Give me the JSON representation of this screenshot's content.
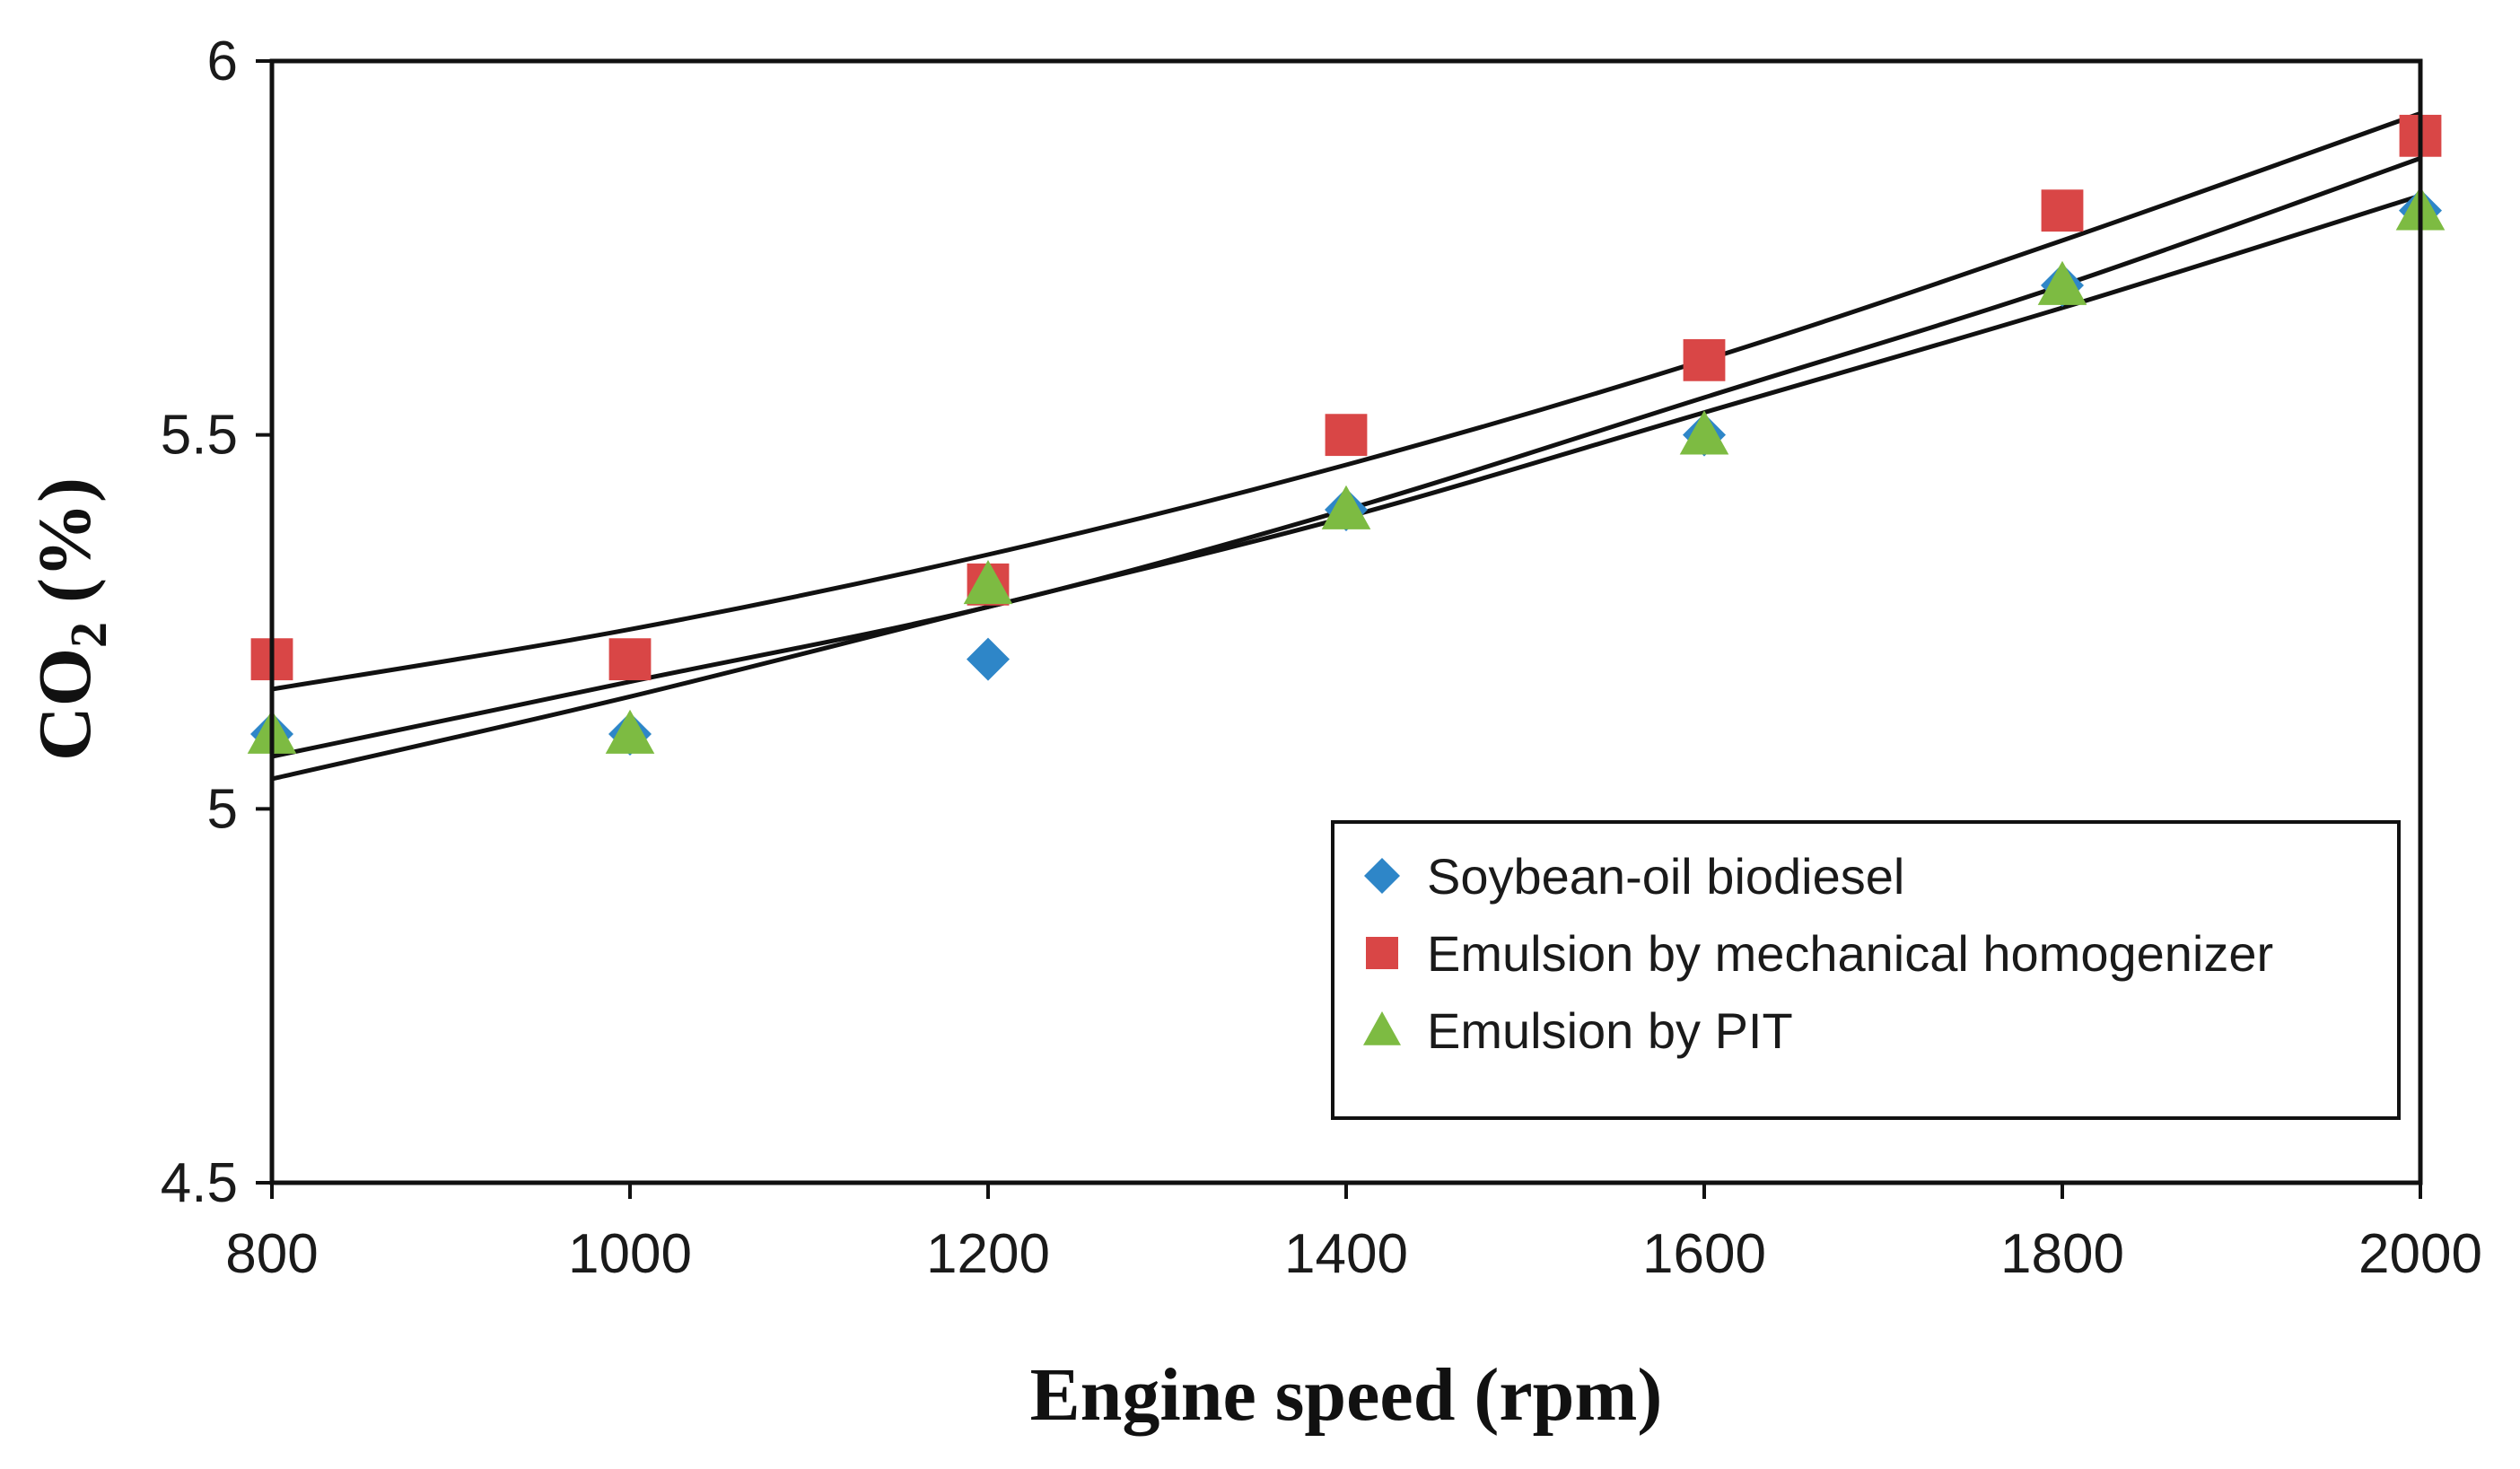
{
  "chart_data": {
    "type": "scatter",
    "title": "",
    "xlabel": "Engine speed (rpm)",
    "ylabel_main": "CO",
    "ylabel_sub": "2",
    "ylabel_tail": " (%)",
    "xlim": [
      800,
      2000
    ],
    "ylim": [
      4.5,
      6
    ],
    "xticks": [
      800,
      1000,
      1200,
      1400,
      1600,
      1800,
      2000
    ],
    "yticks": [
      4.5,
      5,
      5.5,
      6
    ],
    "ytick_labels": [
      "4.5",
      "5",
      "5.5",
      "6"
    ],
    "xtick_labels": [
      "800",
      "1000",
      "1200",
      "1400",
      "1600",
      "1800",
      "2000"
    ],
    "grid": false,
    "legend_position": "bottom-right",
    "x": [
      800,
      1000,
      1200,
      1400,
      1600,
      1800,
      2000
    ],
    "series": [
      {
        "name": "Soybean-oil biodiesel",
        "marker": "diamond",
        "color": "#2e86c8",
        "values": [
          5.1,
          5.1,
          5.2,
          5.4,
          5.5,
          5.7,
          5.8
        ],
        "trend": [
          5.04,
          5.15,
          5.27,
          5.39,
          5.53,
          5.67,
          5.82
        ]
      },
      {
        "name": "Emulsion by mechanical homogenizer",
        "marker": "square",
        "color": "#d94646",
        "values": [
          5.2,
          5.2,
          5.3,
          5.5,
          5.6,
          5.8,
          5.9
        ],
        "trend": [
          5.16,
          5.24,
          5.34,
          5.46,
          5.6,
          5.76,
          5.93
        ]
      },
      {
        "name": "Emulsion by PIT",
        "marker": "triangle",
        "color": "#7dbb42",
        "values": [
          5.1,
          5.1,
          5.3,
          5.4,
          5.5,
          5.7,
          5.8
        ],
        "trend": [
          5.07,
          5.17,
          5.27,
          5.4,
          5.55,
          5.7,
          5.87
        ]
      }
    ],
    "trendline_color": "#111111"
  }
}
